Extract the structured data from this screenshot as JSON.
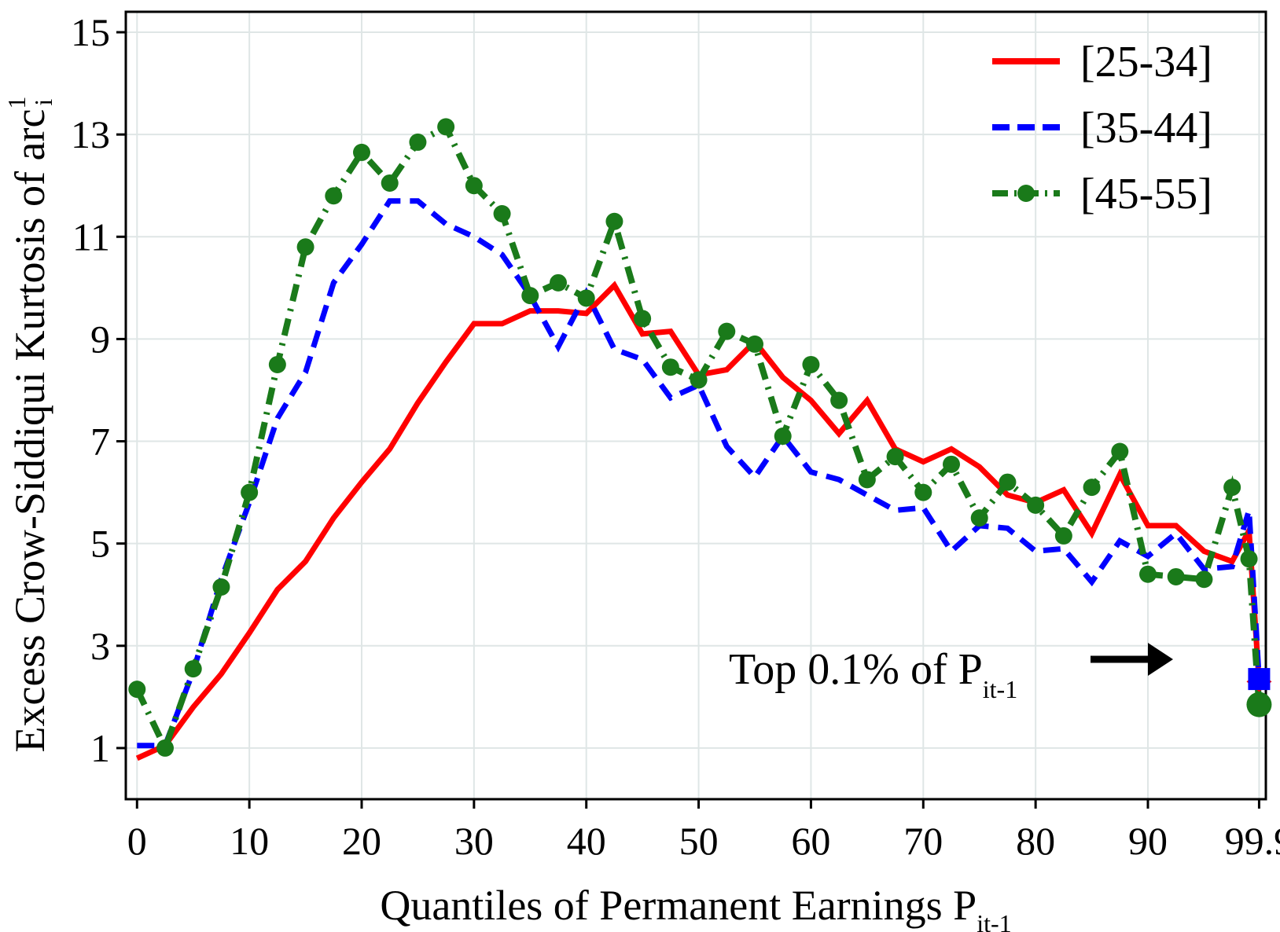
{
  "chart_data": {
    "type": "line",
    "title": "",
    "xlabel": "Quantiles of Permanent Earnings P",
    "xlabel_sub": "it-1",
    "ylabel": "Excess Crow-Siddiqui Kurtosis of arc",
    "ylabel_sup": "1",
    "ylabel_sub": "i",
    "x_ticks": [
      "0",
      "10",
      "20",
      "30",
      "40",
      "50",
      "60",
      "70",
      "80",
      "90",
      "99.9"
    ],
    "y_ticks": [
      "1",
      "3",
      "5",
      "7",
      "9",
      "11",
      "13",
      "15"
    ],
    "xlim": [
      -1,
      100.5
    ],
    "ylim": [
      0,
      15.4
    ],
    "grid": true,
    "legend_position": "top-right",
    "x": [
      0,
      2.5,
      5,
      7.5,
      10,
      12.5,
      15,
      17.5,
      20,
      22.5,
      25,
      27.5,
      30,
      32.5,
      35,
      37.5,
      40,
      42.5,
      45,
      47.5,
      50,
      52.5,
      55,
      57.5,
      60,
      62.5,
      65,
      67.5,
      70,
      72.5,
      75,
      77.5,
      80,
      82.5,
      85,
      87.5,
      90,
      92.5,
      95,
      97.5,
      99,
      99.9
    ],
    "series": [
      {
        "name": "[25-34]",
        "color": "#ff0000",
        "style": "solid",
        "values": [
          0.8,
          1.05,
          1.8,
          2.45,
          3.25,
          4.1,
          4.65,
          5.5,
          6.2,
          6.85,
          7.75,
          8.55,
          9.3,
          9.3,
          9.55,
          9.55,
          9.5,
          10.05,
          9.1,
          9.15,
          8.3,
          8.4,
          8.95,
          8.25,
          7.8,
          7.15,
          7.8,
          6.85,
          6.6,
          6.85,
          6.5,
          5.95,
          5.8,
          6.05,
          5.2,
          6.35,
          5.35,
          5.35,
          4.85,
          4.65,
          5.25,
          2.3
        ],
        "end_marker": "diamond"
      },
      {
        "name": "[35-44]",
        "color": "#0000ff",
        "style": "dashed",
        "values": [
          1.05,
          1.05,
          2.5,
          4.3,
          5.8,
          7.45,
          8.35,
          10.1,
          10.85,
          11.7,
          11.7,
          11.25,
          11.0,
          10.65,
          9.85,
          8.85,
          9.9,
          8.8,
          8.6,
          7.85,
          8.1,
          6.9,
          6.3,
          7.1,
          6.4,
          6.25,
          5.95,
          5.65,
          5.7,
          4.85,
          5.35,
          5.3,
          4.85,
          4.9,
          4.25,
          5.05,
          4.75,
          5.2,
          4.5,
          4.55,
          5.65,
          2.35
        ],
        "end_marker": "square"
      },
      {
        "name": "[45-55]",
        "color": "#1a7a1a",
        "style": "dash-dot-circle",
        "values": [
          2.15,
          1.0,
          2.55,
          4.15,
          6.0,
          8.5,
          10.8,
          11.8,
          12.65,
          12.05,
          12.85,
          13.15,
          12.0,
          11.45,
          9.85,
          10.1,
          9.8,
          11.3,
          9.4,
          8.45,
          8.2,
          9.15,
          8.9,
          7.1,
          8.5,
          7.8,
          6.25,
          6.7,
          6.0,
          6.55,
          5.5,
          6.2,
          5.75,
          5.15,
          6.1,
          6.8,
          4.4,
          4.35,
          4.3,
          6.1,
          4.7,
          1.85
        ],
        "end_marker": "circle"
      }
    ],
    "annotation": {
      "text": "Top 0.1% of P",
      "sub": "it-1",
      "arrow": "right"
    }
  }
}
